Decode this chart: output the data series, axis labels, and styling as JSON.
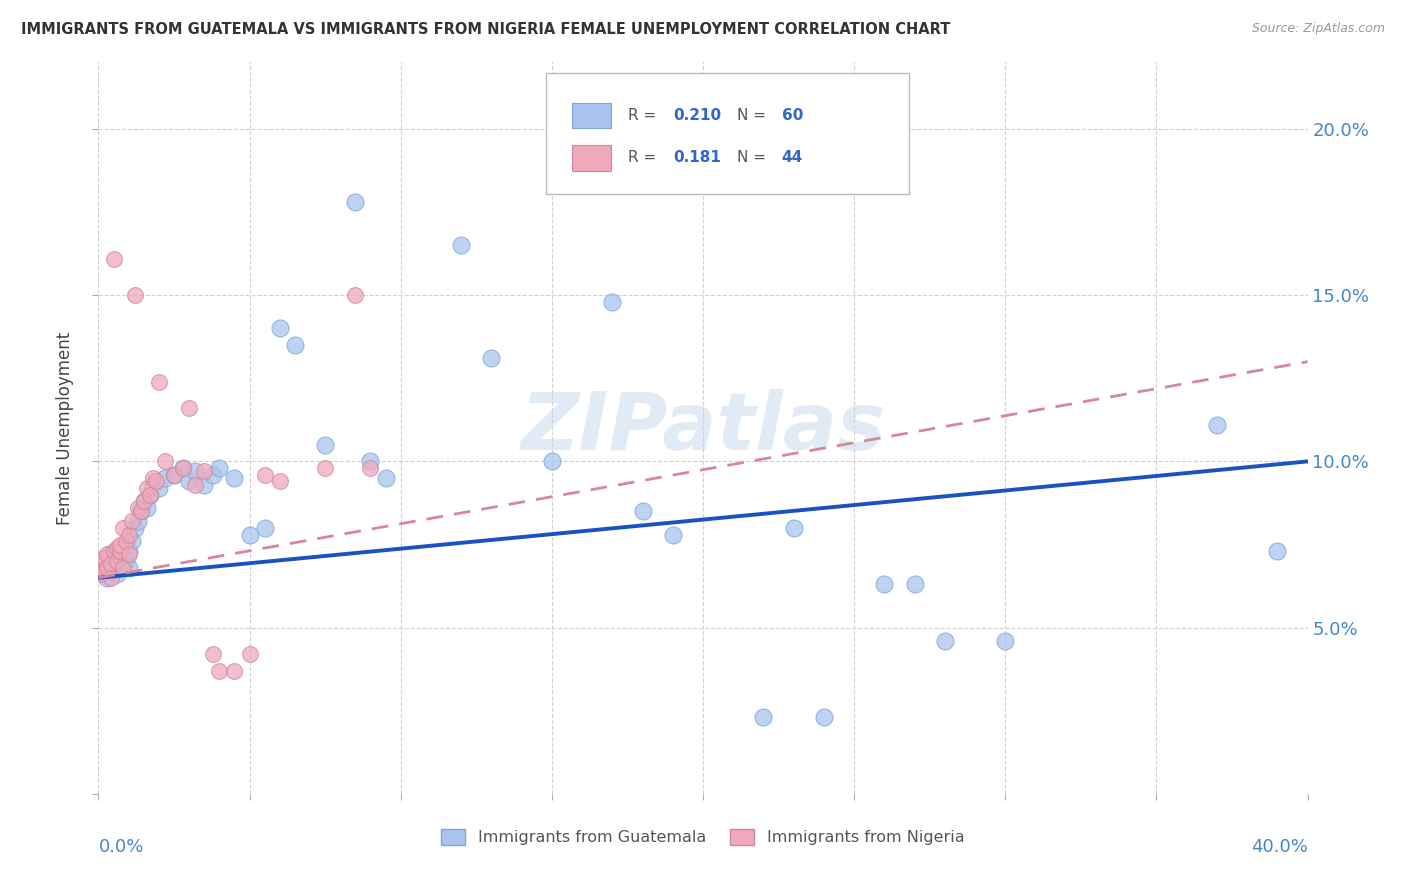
{
  "title": "IMMIGRANTS FROM GUATEMALA VS IMMIGRANTS FROM NIGERIA FEMALE UNEMPLOYMENT CORRELATION CHART",
  "source": "Source: ZipAtlas.com",
  "ylabel": "Female Unemployment",
  "watermark": "ZIPatlas",
  "guatemala_color": "#a8c4ee",
  "nigeria_color": "#f0a8bc",
  "trend_guatemala_color": "#1a52c4",
  "trend_nigeria_color": "#d48898",
  "xlim": [
    0,
    0.4
  ],
  "ylim": [
    0,
    0.22
  ],
  "yticks": [
    0.05,
    0.1,
    0.15,
    0.2
  ],
  "ytick_labels": [
    "5.0%",
    "10.0%",
    "15.0%",
    "20.0%"
  ],
  "xtick_label_left": "0.0%",
  "xtick_label_right": "40.0%",
  "legend_r1": "R = 0.210",
  "legend_n1": "N = 60",
  "legend_r2": "R = 0.181",
  "legend_n2": "N = 44",
  "guat_x": [
    0.001,
    0.002,
    0.003,
    0.003,
    0.004,
    0.004,
    0.005,
    0.005,
    0.006,
    0.006,
    0.006,
    0.007,
    0.007,
    0.008,
    0.008,
    0.009,
    0.009,
    0.01,
    0.01,
    0.011,
    0.012,
    0.013,
    0.014,
    0.015,
    0.016,
    0.017,
    0.018,
    0.02,
    0.022,
    0.025,
    0.028,
    0.03,
    0.032,
    0.035,
    0.038,
    0.04,
    0.045,
    0.05,
    0.055,
    0.06,
    0.065,
    0.075,
    0.085,
    0.09,
    0.095,
    0.12,
    0.13,
    0.15,
    0.17,
    0.18,
    0.19,
    0.22,
    0.23,
    0.24,
    0.26,
    0.27,
    0.28,
    0.3,
    0.37,
    0.39
  ],
  "guat_y": [
    0.067,
    0.068,
    0.07,
    0.065,
    0.068,
    0.072,
    0.069,
    0.071,
    0.07,
    0.073,
    0.066,
    0.072,
    0.068,
    0.074,
    0.069,
    0.075,
    0.07,
    0.073,
    0.068,
    0.076,
    0.08,
    0.082,
    0.085,
    0.088,
    0.086,
    0.09,
    0.093,
    0.092,
    0.095,
    0.096,
    0.098,
    0.094,
    0.097,
    0.093,
    0.096,
    0.098,
    0.095,
    0.078,
    0.08,
    0.14,
    0.135,
    0.105,
    0.178,
    0.1,
    0.095,
    0.165,
    0.131,
    0.1,
    0.148,
    0.085,
    0.078,
    0.023,
    0.08,
    0.023,
    0.063,
    0.063,
    0.046,
    0.046,
    0.111,
    0.073
  ],
  "nig_x": [
    0.001,
    0.001,
    0.002,
    0.002,
    0.003,
    0.003,
    0.004,
    0.004,
    0.005,
    0.005,
    0.006,
    0.006,
    0.007,
    0.007,
    0.008,
    0.008,
    0.009,
    0.01,
    0.01,
    0.011,
    0.012,
    0.013,
    0.014,
    0.015,
    0.016,
    0.017,
    0.018,
    0.019,
    0.02,
    0.022,
    0.025,
    0.028,
    0.03,
    0.032,
    0.035,
    0.038,
    0.04,
    0.045,
    0.05,
    0.055,
    0.06,
    0.075,
    0.085,
    0.09
  ],
  "nig_y": [
    0.066,
    0.07,
    0.067,
    0.071,
    0.068,
    0.072,
    0.069,
    0.065,
    0.161,
    0.073,
    0.07,
    0.074,
    0.073,
    0.075,
    0.08,
    0.068,
    0.076,
    0.078,
    0.072,
    0.082,
    0.15,
    0.086,
    0.085,
    0.088,
    0.092,
    0.09,
    0.095,
    0.094,
    0.124,
    0.1,
    0.096,
    0.098,
    0.116,
    0.093,
    0.097,
    0.042,
    0.037,
    0.037,
    0.042,
    0.096,
    0.094,
    0.098,
    0.15,
    0.098
  ]
}
